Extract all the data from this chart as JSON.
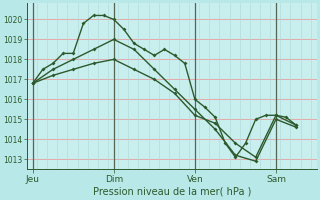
{
  "title": "",
  "xlabel": "Pression niveau de la mer( hPa )",
  "bg_color": "#b8e8e8",
  "plot_bg_color": "#c8eeee",
  "grid_color_h": "#e8a0a0",
  "grid_color_v": "#b0d8d8",
  "day_sep_color": "#556655",
  "line_color": "#2d5a2d",
  "marker": "D",
  "marker_size": 2.0,
  "linewidth": 1.0,
  "ylim": [
    1012.5,
    1020.8
  ],
  "yticks": [
    1013,
    1014,
    1015,
    1016,
    1017,
    1018,
    1019,
    1020
  ],
  "day_positions": [
    0,
    56,
    112,
    168
  ],
  "day_labels": [
    "Jeu",
    "Dim",
    "Ven",
    "Sam"
  ],
  "xlim": [
    -4,
    196
  ],
  "series1_x": [
    0,
    7,
    14,
    21,
    28,
    35,
    42,
    49,
    56,
    63,
    70,
    77,
    84,
    91,
    98,
    105,
    112,
    119,
    126,
    133,
    140,
    147,
    154,
    161,
    168,
    175,
    182
  ],
  "series1_y": [
    1016.8,
    1017.5,
    1017.8,
    1018.3,
    1018.3,
    1019.8,
    1020.2,
    1020.2,
    1020.0,
    1019.5,
    1018.8,
    1018.5,
    1018.2,
    1018.5,
    1018.2,
    1017.8,
    1016.0,
    1015.6,
    1015.1,
    1013.8,
    1013.1,
    1013.8,
    1015.0,
    1015.2,
    1015.2,
    1015.1,
    1014.7
  ],
  "series2_x": [
    0,
    14,
    28,
    42,
    56,
    70,
    84,
    98,
    112,
    126,
    140,
    154,
    168,
    182
  ],
  "series2_y": [
    1016.8,
    1017.5,
    1018.0,
    1018.5,
    1019.0,
    1018.5,
    1017.5,
    1016.5,
    1015.5,
    1014.5,
    1013.2,
    1012.9,
    1015.0,
    1014.6
  ],
  "series3_x": [
    0,
    14,
    28,
    42,
    56,
    70,
    84,
    98,
    112,
    126,
    140,
    154,
    168,
    182
  ],
  "series3_y": [
    1016.8,
    1017.2,
    1017.5,
    1017.8,
    1018.0,
    1017.5,
    1017.0,
    1016.3,
    1015.2,
    1014.8,
    1013.8,
    1013.1,
    1015.2,
    1014.7
  ]
}
